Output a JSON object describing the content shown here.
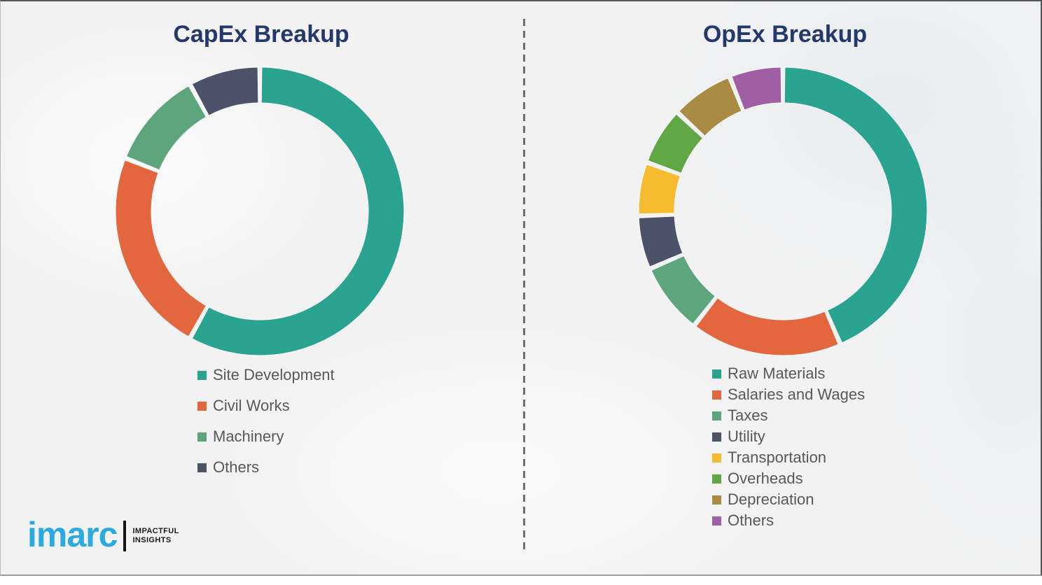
{
  "page": {
    "background_color": "#f2f2f3",
    "title_color": "#24386b",
    "legend_text_color": "#58585a",
    "divider_color": "#6f6f6f"
  },
  "chart_data": [
    {
      "type": "pie",
      "variant": "donut",
      "title": "CapEx Breakup",
      "legend_position": "bottom-left",
      "segments": [
        {
          "label": "Site Development",
          "value": 58,
          "color": "#2aa391"
        },
        {
          "label": "Civil Works",
          "value": 23,
          "color": "#e4663f"
        },
        {
          "label": "Machinery",
          "value": 11,
          "color": "#5ca57d"
        },
        {
          "label": "Others",
          "value": 8,
          "color": "#4c5269"
        }
      ]
    },
    {
      "type": "pie",
      "variant": "donut",
      "title": "OpEx Breakup",
      "legend_position": "bottom-left",
      "segments": [
        {
          "label": "Raw Materials",
          "value": 43.5,
          "color": "#2aa391"
        },
        {
          "label": "Salaries and Wages",
          "value": 17,
          "color": "#e4663f"
        },
        {
          "label": "Taxes",
          "value": 8,
          "color": "#5ca57d"
        },
        {
          "label": "Utility",
          "value": 6,
          "color": "#4c5269"
        },
        {
          "label": "Transportation",
          "value": 6,
          "color": "#f7bb31"
        },
        {
          "label": "Overheads",
          "value": 6.5,
          "color": "#61a744"
        },
        {
          "label": "Depreciation",
          "value": 7,
          "color": "#a98b44"
        },
        {
          "label": "Others",
          "value": 6,
          "color": "#a05fa5"
        }
      ]
    }
  ],
  "logo": {
    "wordmark": "imarc",
    "tagline_line1": "IMPACTFUL",
    "tagline_line2": "INSIGHTS",
    "wordmark_color": "#2ba9e1"
  }
}
